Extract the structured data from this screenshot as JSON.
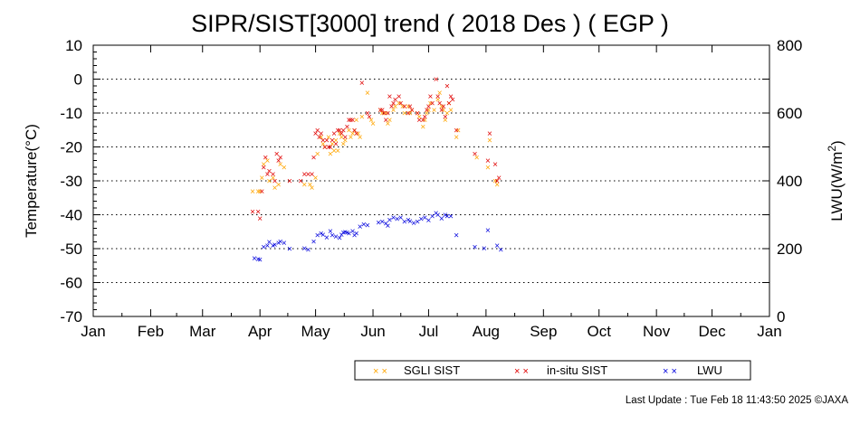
{
  "chart_data": {
    "type": "scatter",
    "title": "SIPR/SIST[3000] trend ( 2018 Des ) ( EGP )",
    "ylabel_left": "Temperature(°C)",
    "ylabel_right_base": "LWU(W/m",
    "ylabel_right_sup": "2",
    "ylabel_right_end": ")",
    "ylim_left": [
      -70,
      10
    ],
    "yticks_left": [
      10,
      0,
      -10,
      -20,
      -30,
      -40,
      -50,
      -60,
      -70
    ],
    "ylim_right": [
      0,
      800
    ],
    "yticks_right": [
      800,
      600,
      400,
      200,
      0
    ],
    "xlim_day": [
      0,
      365
    ],
    "x_ticks": [
      {
        "label": "Jan",
        "day": 0
      },
      {
        "label": "Feb",
        "day": 31
      },
      {
        "label": "Mar",
        "day": 59
      },
      {
        "label": "Apr",
        "day": 90
      },
      {
        "label": "May",
        "day": 120
      },
      {
        "label": "Jun",
        "day": 151
      },
      {
        "label": "Jul",
        "day": 181
      },
      {
        "label": "Aug",
        "day": 212
      },
      {
        "label": "Sep",
        "day": 243
      },
      {
        "label": "Oct",
        "day": 273
      },
      {
        "label": "Nov",
        "day": 304
      },
      {
        "label": "Dec",
        "day": 334
      },
      {
        "label": "Jan",
        "day": 365
      }
    ],
    "grid": "horizontal dotted",
    "legend_position": "bottom-right",
    "series": [
      {
        "name": "SGLI SIST",
        "color": "#FFA500",
        "axis": "left",
        "points": [
          [
            86,
            -33
          ],
          [
            89,
            -33
          ],
          [
            90,
            -33
          ],
          [
            91,
            -29
          ],
          [
            92,
            -25
          ],
          [
            94,
            -24
          ],
          [
            95,
            -30
          ],
          [
            97,
            -29
          ],
          [
            98,
            -32
          ],
          [
            100,
            -31
          ],
          [
            101,
            -25
          ],
          [
            103,
            -26
          ],
          [
            114,
            -31
          ],
          [
            117,
            -31
          ],
          [
            118,
            -32
          ],
          [
            120,
            -29
          ],
          [
            121,
            -22
          ],
          [
            123,
            -17
          ],
          [
            124,
            -19
          ],
          [
            125,
            -20
          ],
          [
            127,
            -17
          ],
          [
            128,
            -22
          ],
          [
            129,
            -19
          ],
          [
            130,
            -21
          ],
          [
            131,
            -18
          ],
          [
            132,
            -21
          ],
          [
            133,
            -16
          ],
          [
            134,
            -17
          ],
          [
            135,
            -19
          ],
          [
            136,
            -18
          ],
          [
            138,
            -15
          ],
          [
            139,
            -17
          ],
          [
            140,
            -16
          ],
          [
            141,
            -15
          ],
          [
            142,
            -12
          ],
          [
            143,
            -16
          ],
          [
            144,
            -17
          ],
          [
            145,
            -11
          ],
          [
            148,
            -4
          ],
          [
            150,
            -12
          ],
          [
            151,
            -13
          ],
          [
            155,
            -9
          ],
          [
            156,
            -10
          ],
          [
            158,
            -10
          ],
          [
            159,
            -13
          ],
          [
            160,
            -12
          ],
          [
            162,
            -9
          ],
          [
            163,
            -8
          ],
          [
            165,
            -7
          ],
          [
            167,
            -8
          ],
          [
            168,
            -10
          ],
          [
            170,
            -8
          ],
          [
            171,
            -10
          ],
          [
            172,
            -9
          ],
          [
            175,
            -10
          ],
          [
            176,
            -11
          ],
          [
            178,
            -14
          ],
          [
            179,
            -12
          ],
          [
            180,
            -10
          ],
          [
            181,
            -9
          ],
          [
            182,
            -7
          ],
          [
            184,
            -9
          ],
          [
            186,
            -6
          ],
          [
            187,
            -4
          ],
          [
            188,
            -8
          ],
          [
            189,
            -9
          ],
          [
            190,
            -12
          ],
          [
            191,
            -10
          ],
          [
            192,
            -7
          ],
          [
            193,
            -9
          ],
          [
            196,
            -17
          ],
          [
            197,
            -15
          ],
          [
            207,
            -23
          ],
          [
            213,
            -26
          ],
          [
            214,
            -18
          ],
          [
            217,
            -30
          ],
          [
            218,
            -31
          ]
        ]
      },
      {
        "name": "in-situ SIST",
        "color": "#E00000",
        "axis": "left",
        "points": [
          [
            86,
            -39
          ],
          [
            89,
            -39
          ],
          [
            90,
            -41
          ],
          [
            91,
            -33
          ],
          [
            92,
            -26
          ],
          [
            93,
            -23
          ],
          [
            94,
            -28
          ],
          [
            95,
            -27
          ],
          [
            97,
            -28
          ],
          [
            98,
            -30
          ],
          [
            99,
            -22
          ],
          [
            100,
            -24
          ],
          [
            101,
            -23
          ],
          [
            106,
            -30
          ],
          [
            112,
            -30
          ],
          [
            114,
            -28
          ],
          [
            116,
            -28
          ],
          [
            118,
            -28
          ],
          [
            119,
            -23
          ],
          [
            120,
            -16
          ],
          [
            121,
            -15
          ],
          [
            122,
            -17
          ],
          [
            123,
            -16
          ],
          [
            124,
            -18
          ],
          [
            125,
            -20
          ],
          [
            126,
            -18
          ],
          [
            127,
            -20
          ],
          [
            128,
            -20
          ],
          [
            129,
            -18
          ],
          [
            130,
            -16
          ],
          [
            131,
            -19
          ],
          [
            132,
            -15
          ],
          [
            133,
            -15
          ],
          [
            134,
            -16
          ],
          [
            135,
            -15
          ],
          [
            136,
            -17
          ],
          [
            137,
            -14
          ],
          [
            138,
            -12
          ],
          [
            139,
            -12
          ],
          [
            140,
            -12
          ],
          [
            141,
            -15
          ],
          [
            142,
            -16
          ],
          [
            145,
            -1
          ],
          [
            148,
            -10
          ],
          [
            149,
            -11
          ],
          [
            155,
            -9
          ],
          [
            156,
            -9
          ],
          [
            157,
            -10
          ],
          [
            158,
            -12
          ],
          [
            159,
            -10
          ],
          [
            160,
            -5
          ],
          [
            161,
            -8
          ],
          [
            162,
            -7
          ],
          [
            163,
            -6
          ],
          [
            165,
            -5
          ],
          [
            166,
            -7
          ],
          [
            168,
            -8
          ],
          [
            170,
            -10
          ],
          [
            171,
            -8
          ],
          [
            172,
            -9
          ],
          [
            175,
            -10
          ],
          [
            176,
            -12
          ],
          [
            178,
            -12
          ],
          [
            179,
            -11
          ],
          [
            180,
            -9
          ],
          [
            181,
            -8
          ],
          [
            182,
            -5
          ],
          [
            183,
            -7
          ],
          [
            185,
            0
          ],
          [
            186,
            -5
          ],
          [
            187,
            -7
          ],
          [
            188,
            -9
          ],
          [
            189,
            -8
          ],
          [
            190,
            -11
          ],
          [
            191,
            -2
          ],
          [
            192,
            -7
          ],
          [
            193,
            -5
          ],
          [
            194,
            -6
          ],
          [
            196,
            -15
          ],
          [
            206,
            -22
          ],
          [
            213,
            -24
          ],
          [
            214,
            -16
          ],
          [
            217,
            -25
          ],
          [
            218,
            -30
          ],
          [
            219,
            -29
          ]
        ]
      },
      {
        "name": "LWU",
        "color": "#0000DD",
        "axis": "right",
        "points": [
          [
            87,
            172
          ],
          [
            89,
            170
          ],
          [
            90,
            168
          ],
          [
            92,
            205
          ],
          [
            94,
            210
          ],
          [
            95,
            220
          ],
          [
            97,
            210
          ],
          [
            98,
            212
          ],
          [
            100,
            218
          ],
          [
            101,
            222
          ],
          [
            103,
            218
          ],
          [
            106,
            200
          ],
          [
            114,
            202
          ],
          [
            116,
            198
          ],
          [
            119,
            222
          ],
          [
            121,
            240
          ],
          [
            123,
            245
          ],
          [
            124,
            242
          ],
          [
            126,
            233
          ],
          [
            128,
            252
          ],
          [
            129,
            240
          ],
          [
            131,
            236
          ],
          [
            133,
            232
          ],
          [
            134,
            242
          ],
          [
            135,
            248
          ],
          [
            136,
            250
          ],
          [
            137,
            248
          ],
          [
            138,
            245
          ],
          [
            140,
            252
          ],
          [
            141,
            240
          ],
          [
            142,
            245
          ],
          [
            144,
            265
          ],
          [
            146,
            272
          ],
          [
            148,
            270
          ],
          [
            154,
            278
          ],
          [
            156,
            280
          ],
          [
            158,
            275
          ],
          [
            159,
            268
          ],
          [
            160,
            285
          ],
          [
            162,
            292
          ],
          [
            164,
            288
          ],
          [
            166,
            292
          ],
          [
            168,
            280
          ],
          [
            170,
            285
          ],
          [
            171,
            282
          ],
          [
            173,
            276
          ],
          [
            175,
            280
          ],
          [
            177,
            288
          ],
          [
            179,
            292
          ],
          [
            181,
            284
          ],
          [
            183,
            296
          ],
          [
            185,
            306
          ],
          [
            186,
            300
          ],
          [
            188,
            290
          ],
          [
            190,
            300
          ],
          [
            191,
            296
          ],
          [
            193,
            296
          ],
          [
            196,
            240
          ],
          [
            206,
            205
          ],
          [
            211,
            202
          ],
          [
            213,
            255
          ],
          [
            218,
            210
          ],
          [
            220,
            198
          ]
        ]
      }
    ]
  },
  "legend": {
    "items": [
      {
        "marker": "× ×",
        "label": "SGLI SIST",
        "color": "#FFA500"
      },
      {
        "marker": "× ×",
        "label": "in-situ SIST",
        "color": "#E00000"
      },
      {
        "marker": "× ×",
        "label": "LWU",
        "color": "#0000DD"
      }
    ]
  },
  "footer": {
    "last_update": "Last Update : Tue Feb 18 11:43:50 2025  ©JAXA"
  }
}
